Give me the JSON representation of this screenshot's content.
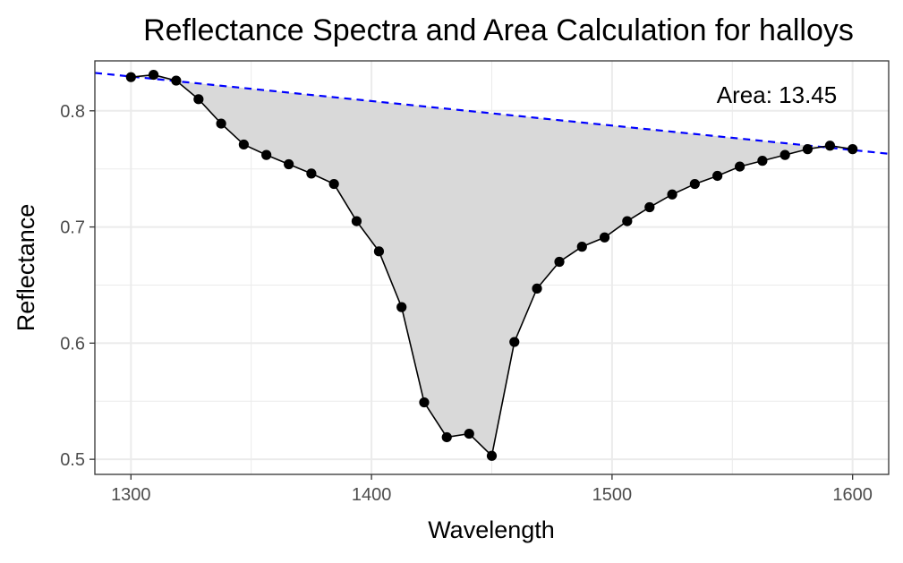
{
  "chart_data": {
    "type": "line",
    "title": "Reflectance Spectra and Area Calculation for halloys",
    "xlabel": "Wavelength",
    "ylabel": "Reflectance",
    "xlim": [
      1285,
      1615
    ],
    "ylim": [
      0.487,
      0.843
    ],
    "x_ticks": [
      1300,
      1400,
      1500,
      1600
    ],
    "y_ticks": [
      0.5,
      0.6,
      0.7,
      0.8
    ],
    "x_tick_labels": [
      "1300",
      "1400",
      "1500",
      "1600"
    ],
    "y_tick_labels": [
      "0.5",
      "0.6",
      "0.7",
      "0.8"
    ],
    "grid": true,
    "annotation": "Area: 13.45",
    "colors": {
      "line": "#000000",
      "points": "#000000",
      "fill": "#d9d9d9",
      "baseline": "#0000ff",
      "grid": "#ebebeb",
      "panel_border": "#333333",
      "axis_text": "#4d4d4d"
    },
    "baseline": {
      "style": "dashed",
      "points": [
        [
          1300,
          0.8295
        ],
        [
          1600,
          0.7662
        ]
      ]
    },
    "series": [
      {
        "x": [
          1300,
          1309.4,
          1318.8,
          1328.1,
          1337.5,
          1346.9,
          1356.3,
          1365.6,
          1375,
          1384.4,
          1393.8,
          1403.1,
          1412.5,
          1421.9,
          1431.3,
          1440.6,
          1450,
          1459.4,
          1468.8,
          1478.1,
          1487.5,
          1496.9,
          1506.3,
          1515.6,
          1525,
          1534.4,
          1543.8,
          1553.1,
          1562.5,
          1571.9,
          1581.3,
          1590.6,
          1600
        ],
        "y": [
          0.829,
          0.831,
          0.826,
          0.81,
          0.789,
          0.771,
          0.762,
          0.754,
          0.746,
          0.737,
          0.705,
          0.679,
          0.631,
          0.549,
          0.519,
          0.522,
          0.503,
          0.601,
          0.647,
          0.67,
          0.683,
          0.691,
          0.705,
          0.717,
          0.728,
          0.737,
          0.744,
          0.752,
          0.757,
          0.762,
          0.767,
          0.77,
          0.767
        ]
      }
    ]
  }
}
